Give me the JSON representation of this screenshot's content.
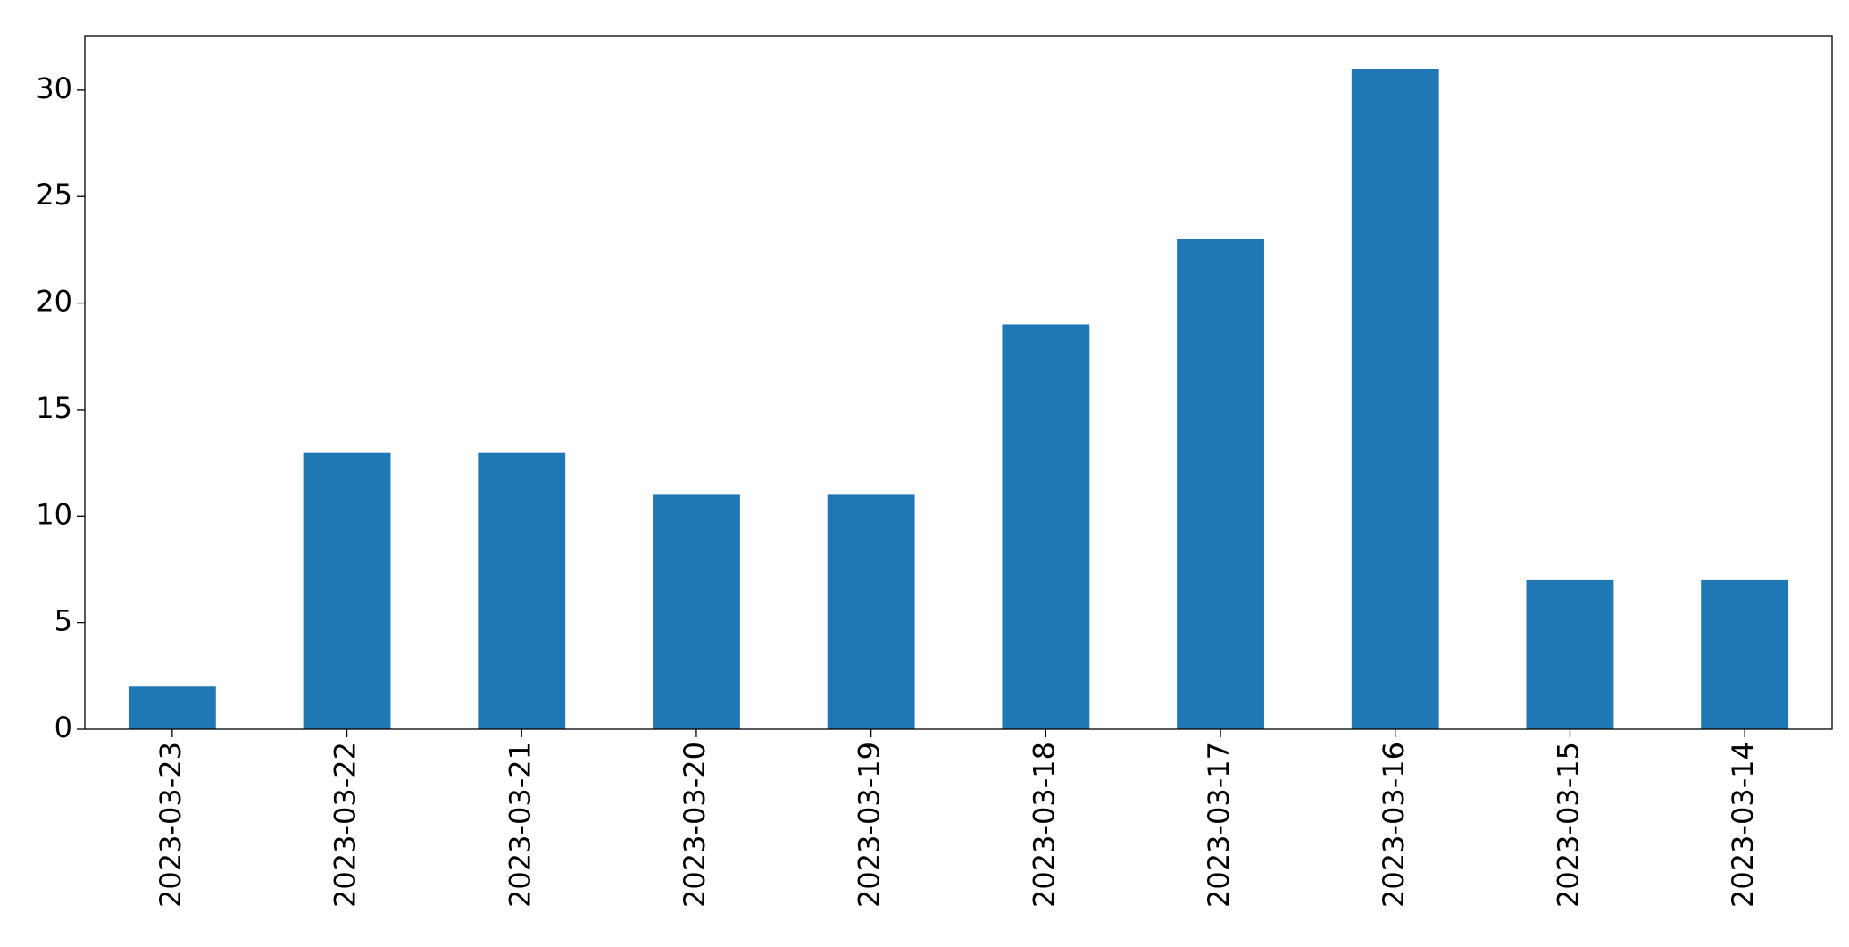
{
  "chart_data": {
    "type": "bar",
    "categories": [
      "2023-03-23",
      "2023-03-22",
      "2023-03-21",
      "2023-03-20",
      "2023-03-19",
      "2023-03-18",
      "2023-03-17",
      "2023-03-16",
      "2023-03-15",
      "2023-03-14"
    ],
    "values": [
      2,
      13,
      13,
      11,
      11,
      19,
      23,
      31,
      7,
      7
    ],
    "color": "#1f77b4",
    "ylim": [
      0,
      32.55
    ],
    "yticks": [
      0,
      5,
      10,
      15,
      20,
      25,
      30
    ],
    "grid": false
  }
}
